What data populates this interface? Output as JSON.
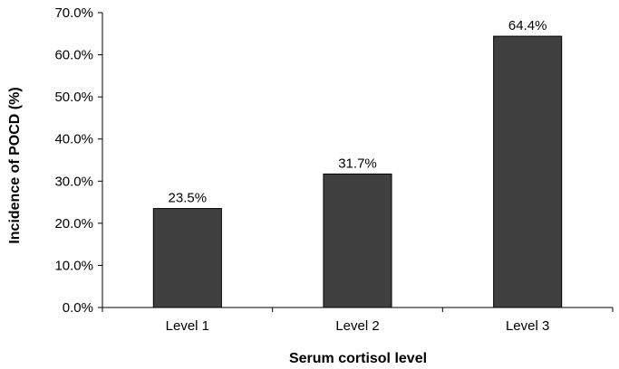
{
  "chart_data": {
    "type": "bar",
    "categories": [
      "Level 1",
      "Level 2",
      "Level 3"
    ],
    "values": [
      23.5,
      31.7,
      64.4
    ],
    "data_labels": [
      "23.5%",
      "31.7%",
      "64.4%"
    ],
    "xlabel": "Serum cortisol level",
    "ylabel": "Incidence of POCD (%)",
    "ylim": [
      0,
      70
    ],
    "yticks": [
      0,
      10,
      20,
      30,
      40,
      50,
      60,
      70
    ],
    "ytick_labels": [
      "0.0%",
      "10.0%",
      "20.0%",
      "30.0%",
      "40.0%",
      "50.0%",
      "60.0%",
      "70.0%"
    ],
    "grid": false,
    "legend": "none",
    "bar_color": "#404040"
  }
}
